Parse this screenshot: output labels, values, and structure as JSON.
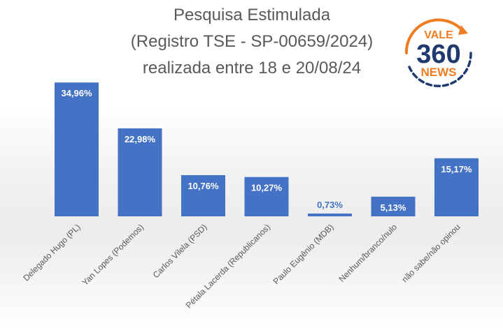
{
  "chart_data": {
    "type": "bar",
    "title_lines": [
      "Pesquisa Estimulada",
      "(Registro TSE - SP-00659/2024)",
      "realizada entre 18 e 20/08/24"
    ],
    "categories": [
      "Delegado Hugo (PL)",
      "Yan Lopes (Podemos)",
      "Carlos Vilela (PSD)",
      "Pétala Lacerda (Republicanos)",
      "Paulo Eugênio (MDB)",
      "Nenhum/branco/nulo",
      "não sabe/não opinou"
    ],
    "values": [
      34.96,
      22.98,
      10.76,
      10.27,
      0.73,
      5.13,
      15.17
    ],
    "data_labels": [
      "34,96%",
      "22,98%",
      "10,76%",
      "10,27%",
      "0,73%",
      "5,13%",
      "15,17%"
    ],
    "ylim": [
      0,
      35
    ],
    "bar_color": "#4472c4",
    "grid": false,
    "legend": "none"
  },
  "logo": {
    "line1": "VALE",
    "line2": "360",
    "line3": "NEWS",
    "accent_color": "#f07c22",
    "brand_color": "#1f3a6e"
  }
}
